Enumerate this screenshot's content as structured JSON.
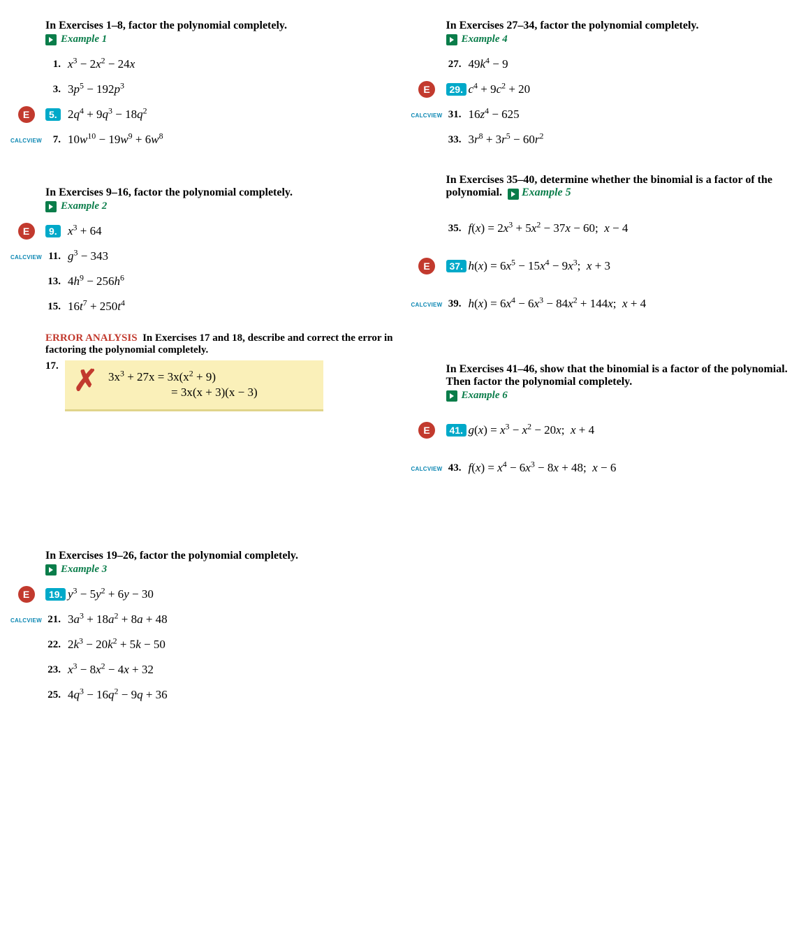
{
  "colors": {
    "example_green": "#0a7d4a",
    "calcview_teal": "#0c87b3",
    "highlight_teal": "#00a9c9",
    "error_red": "#c23a2e",
    "errbox_bg": "#faf0b9"
  },
  "left": {
    "sec1": {
      "head": "In Exercises 1–8, factor the polynomial completely.",
      "example": "Example 1",
      "items": [
        {
          "n": "1.",
          "hl": false,
          "calc": false,
          "html": "<i>x</i><sup>3</sup> − 2<i>x</i><sup>2</sup> − 24<i>x</i>"
        },
        {
          "n": "3.",
          "hl": false,
          "calc": false,
          "html": "3<i>p</i><sup>5</sup> − 192<i>p</i><sup>3</sup>"
        },
        {
          "n": "5.",
          "hl": true,
          "calc": true,
          "html": "2<i>q</i><sup>4</sup> + 9<i>q</i><sup>3</sup> − 18<i>q</i><sup>2</sup>"
        },
        {
          "n": "7.",
          "hl": false,
          "calc": false,
          "html": "10<i>w</i><sup>10</sup> − 19<i>w</i><sup>9</sup> + 6<i>w</i><sup>8</sup>"
        }
      ]
    },
    "sec2": {
      "head": "In Exercises 9–16, factor the polynomial completely.",
      "example": "Example 2",
      "items": [
        {
          "n": "9.",
          "hl": true,
          "calc": true,
          "html": "<i>x</i><sup>3</sup> + 64"
        },
        {
          "n": "11.",
          "hl": false,
          "calc": false,
          "html": "<i>g</i><sup>3</sup> − 343"
        },
        {
          "n": "13.",
          "hl": false,
          "calc": false,
          "html": "4<i>h</i><sup>9</sup> − 256<i>h</i><sup>6</sup>"
        },
        {
          "n": "15.",
          "hl": false,
          "calc": false,
          "html": "16<i>t</i><sup>7</sup> + 250<i>t</i><sup>4</sup>"
        }
      ]
    },
    "err": {
      "label": "ERROR ANALYSIS",
      "head_rest": "In Exercises 17 and 18, describe and correct the error in factoring the polynomial completely.",
      "n": "17.",
      "line1": "3x<sup>3</sup> + 27x = 3x(x<sup>2</sup> + 9)",
      "line2": "= 3x(x + 3)(x − 3)"
    },
    "sec3": {
      "head": "In Exercises 19–26, factor the polynomial completely.",
      "example": "Example 3",
      "items": [
        {
          "n": "19.",
          "hl": true,
          "calc": true,
          "html": "<i>y</i><sup>3</sup> − 5<i>y</i><sup>2</sup> + 6<i>y</i> − 30"
        },
        {
          "n": "21.",
          "hl": false,
          "calc": false,
          "html": "3<i>a</i><sup>3</sup> + 18<i>a</i><sup>2</sup> + 8<i>a</i> + 48"
        },
        {
          "n": "22.",
          "hl": false,
          "calc": false,
          "html": "2<i>k</i><sup>3</sup> − 20<i>k</i><sup>2</sup> + 5<i>k</i> − 50"
        },
        {
          "n": "23.",
          "hl": false,
          "calc": false,
          "html": "<i>x</i><sup>3</sup> − 8<i>x</i><sup>2</sup> − 4<i>x</i> + 32"
        },
        {
          "n": "25.",
          "hl": false,
          "calc": false,
          "html": "4<i>q</i><sup>3</sup> − 16<i>q</i><sup>2</sup> − 9<i>q</i> + 36"
        }
      ]
    }
  },
  "right": {
    "sec4": {
      "head": "In Exercises 27–34, factor the polynomial completely.",
      "example": "Example 4",
      "items": [
        {
          "n": "27.",
          "hl": false,
          "calc": false,
          "html": "49<i>k</i><sup>4</sup> − 9"
        },
        {
          "n": "29.",
          "hl": true,
          "calc": true,
          "html": "<i>c</i><sup>4</sup> + 9<i>c</i><sup>2</sup> + 20"
        },
        {
          "n": "31.",
          "hl": false,
          "calc": false,
          "html": "16<i>z</i><sup>4</sup> − 625"
        },
        {
          "n": "33.",
          "hl": false,
          "calc": false,
          "html": "3<i>r</i><sup>8</sup> + 3<i>r</i><sup>5</sup> − 60<i>r</i><sup>2</sup>"
        }
      ]
    },
    "sec5": {
      "head": "In Exercises 35–40, determine whether the binomial is a factor of the polynomial.",
      "example": "Example 5",
      "inline_example": true,
      "items": [
        {
          "n": "35.",
          "hl": false,
          "calc": false,
          "html": "<i>f</i>(<i>x</i>) = 2<i>x</i><sup>3</sup> + 5<i>x</i><sup>2</sup> − 37<i>x</i> − 60;&nbsp; <i>x</i> − 4"
        },
        {
          "n": "37.",
          "hl": true,
          "calc": true,
          "html": "<i>h</i>(<i>x</i>) = 6<i>x</i><sup>5</sup> − 15<i>x</i><sup>4</sup> − 9<i>x</i><sup>3</sup>;&nbsp; <i>x</i> + 3"
        },
        {
          "n": "39.",
          "hl": false,
          "calc": false,
          "html": "<i>h</i>(<i>x</i>) = 6<i>x</i><sup>4</sup> − 6<i>x</i><sup>3</sup> − 84<i>x</i><sup>2</sup> + 144<i>x</i>;&nbsp; <i>x</i> + 4"
        }
      ]
    },
    "sec6": {
      "head": "In Exercises 41–46, show that the binomial is a factor of the polynomial. Then factor the polynomial completely.",
      "example": "Example 6",
      "items": [
        {
          "n": "41.",
          "hl": true,
          "calc": true,
          "html": "<i>g</i>(<i>x</i>) = <i>x</i><sup>3</sup> − <i>x</i><sup>2</sup> − 20<i>x</i>;&nbsp; <i>x</i> + 4"
        },
        {
          "n": "43.",
          "hl": false,
          "calc": false,
          "html": "<i>f</i>(<i>x</i>) = <i>x</i><sup>4</sup> − 6<i>x</i><sup>3</sup> − 8<i>x</i> + 48;&nbsp; <i>x</i> − 6"
        }
      ]
    }
  },
  "labels": {
    "calcview": "CALCVIEW",
    "calcview_icon": "E"
  }
}
